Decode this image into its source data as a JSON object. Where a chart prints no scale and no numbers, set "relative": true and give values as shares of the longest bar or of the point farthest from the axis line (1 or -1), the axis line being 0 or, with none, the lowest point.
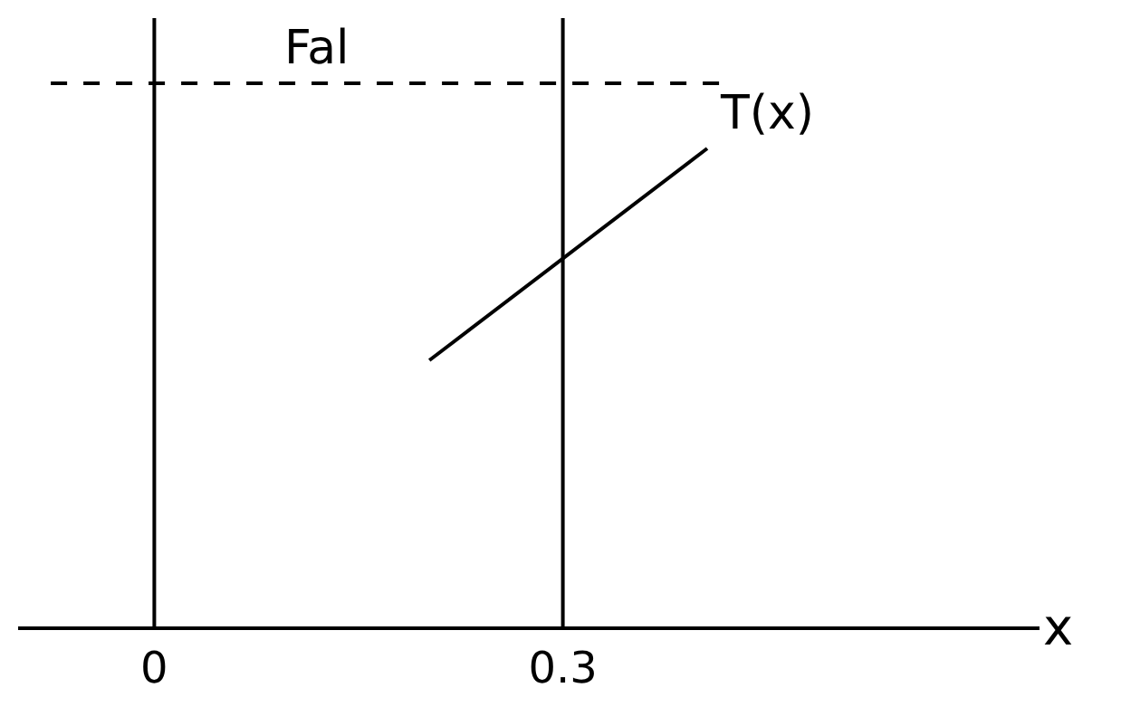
{
  "chart_data": {
    "type": "line",
    "relative": true,
    "xlabel": "x",
    "series": [
      {
        "color": "#000000",
        "line_style": "dashed",
        "x": [
          -0.076,
          0.419
        ],
        "values": [
          1,
          1
        ]
      },
      {
        "color": "#000000",
        "line_style": "solid",
        "x": [
          0.202,
          0.406
        ],
        "values": [
          0.49,
          0.88
        ]
      }
    ],
    "xlim": [
      -0.1,
      0.65
    ],
    "xticks": [
      0,
      0.3
    ],
    "ref_lines": [
      {
        "axis": "x",
        "value": 0,
        "color": "#000000"
      },
      {
        "axis": "x",
        "value": 0.3,
        "color": "#000000"
      }
    ],
    "annotations": [
      {
        "text": "Fal",
        "x": 0.087,
        "y": 1
      },
      {
        "text": "T(x)",
        "x": 0.406,
        "y": 0.88
      }
    ],
    "marker": "none"
  }
}
